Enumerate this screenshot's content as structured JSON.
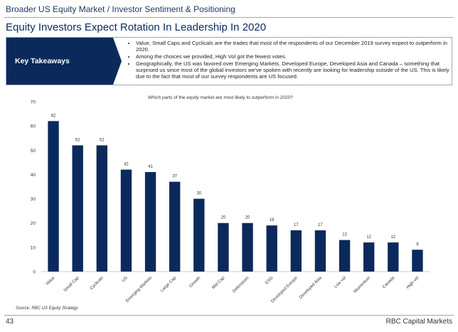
{
  "header": {
    "breadcrumb": "Broader US Equity Market / Investor Sentiment & Positioning",
    "title": "Equity Investors Expect Rotation In Leadership In 2020"
  },
  "takeaways": {
    "label": "Key Takeaways",
    "bullets": [
      "Value, Small Caps and Cyclicals are the trades that most of the respondents of our December 2019 survey expect to outperform in 2020.",
      "Among the choices we provided, High Vol got the fewest votes.",
      "Geographically, the US was favored over Emerging Markets, Developed Europe, Developed Asia and Canada – something that surprised us since most of the global investors we've spoken with recently are looking for leadership outside of the US. This is likely due to the fact that most of our survey respondents are US focused."
    ]
  },
  "chart_data": {
    "type": "bar",
    "title": "Which parts of the equity market are most likely to outperform in 2020?",
    "categories": [
      "Value",
      "Small Cap",
      "Cyclicals",
      "US",
      "Emerging Markets",
      "Large Cap",
      "Growth",
      "Mid Cap",
      "Defensives",
      "ESG",
      "Developed Europe",
      "Developed Asia",
      "Low vol",
      "Momentum",
      "Canada",
      "High vol"
    ],
    "values": [
      62,
      52,
      52,
      42,
      41,
      37,
      30,
      20,
      20,
      19,
      17,
      17,
      13,
      12,
      12,
      9
    ],
    "ylim": [
      0,
      70
    ],
    "yticks": [
      0,
      10,
      20,
      30,
      40,
      50,
      60,
      70
    ],
    "xlabel": "",
    "ylabel": "",
    "bar_color": "#0b2a5b",
    "grid": false
  },
  "footer": {
    "source": "Source: RBC US Equity Strategy",
    "page": "43",
    "brand": "RBC Capital Markets"
  }
}
